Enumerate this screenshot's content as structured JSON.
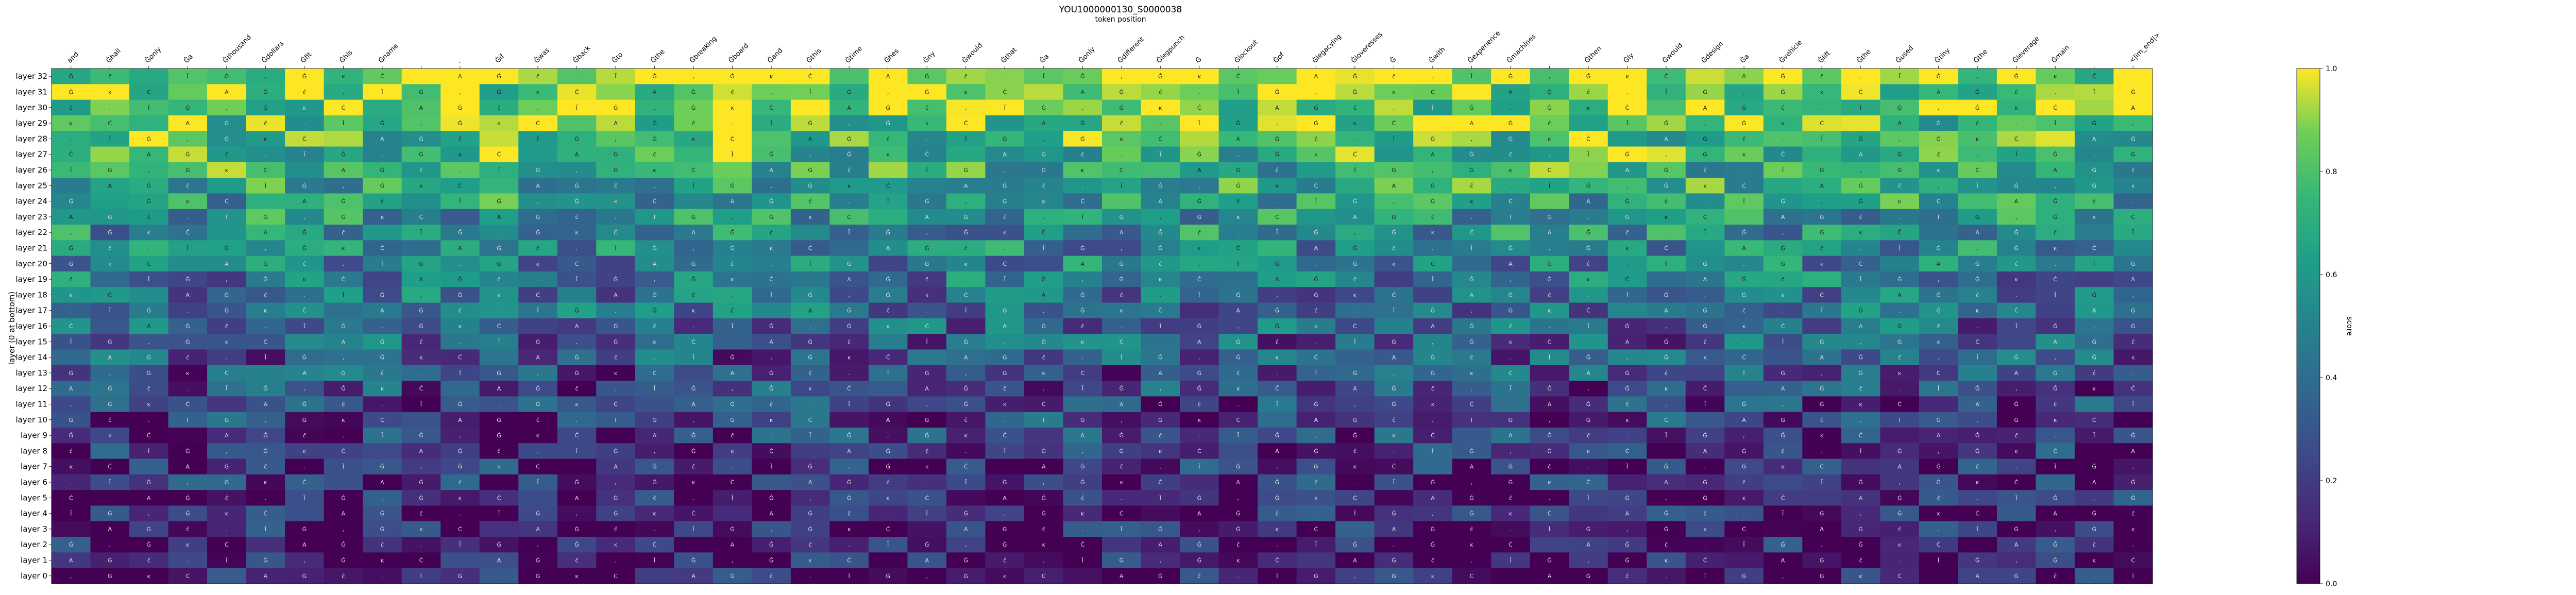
{
  "chart_data": {
    "type": "heatmap",
    "title": "YOU1000000130_S0000038",
    "xlabel": "token position",
    "ylabel": "layer (0 at bottom)",
    "colorbar_label": "score",
    "colorbar_ticks": [
      "0.0",
      "0.2",
      "0.4",
      "0.6",
      "0.8",
      "1.0"
    ],
    "value_range": [
      0,
      1
    ],
    "colormap": "viridis",
    "rows": [
      "layer 32",
      "layer 31",
      "layer 30",
      "layer 29",
      "layer 28",
      "layer 27",
      "layer 26",
      "layer 25",
      "layer 24",
      "layer 23",
      "layer 22",
      "layer 21",
      "layer 20",
      "layer 19",
      "layer 18",
      "layer 17",
      "layer 16",
      "layer 15",
      "layer 14",
      "layer 13",
      "layer 12",
      "layer 11",
      "layer 10",
      "layer 9",
      "layer 8",
      "layer 7",
      "layer 6",
      "layer 5",
      "layer 4",
      "layer 3",
      "layer 2",
      "layer 1",
      "layer 0"
    ],
    "columns": [
      "and",
      "Ġhall",
      "Ġonly",
      "Ġa",
      "Ġthousand",
      "Ġdollars",
      "Ġfit",
      "Ġhis",
      "Ġname",
      "",
      ".",
      "Ġif",
      "Ġwas",
      "Ġback",
      "Ġto",
      "Ġthe",
      "Ġbreaking",
      "Ġboard",
      "Ġand",
      "Ġthis",
      "Ġtime",
      "Ġhes",
      "Ġny",
      "Ġwould",
      "Ġthat",
      "Ġa",
      "Ġonly",
      "Ġdifferent",
      "Ġlegpunch",
      "Ġ",
      "Ġlockout",
      "Ġof",
      "Ġlegacying",
      "Ġloveresses",
      "Ġ",
      "Ġwith",
      "Ġexperience",
      "Ġmachines",
      "",
      "Ġthen",
      "Ġly",
      "Ġwould",
      "Ġdesign",
      "Ġa",
      "Ġvehicle",
      "Ġlift",
      "Ġthe",
      "Ġused",
      "Ġtiny",
      "Ġthe",
      "Ġleverage",
      "Ġmain",
      "",
      "<|im_end|>"
    ]
  }
}
